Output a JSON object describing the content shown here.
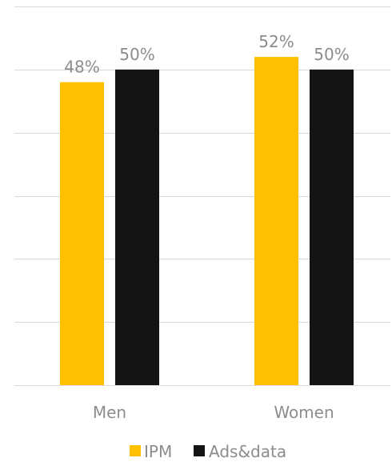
{
  "chart_data": {
    "type": "bar",
    "categories": [
      "Men",
      "Women"
    ],
    "series": [
      {
        "name": "IPM",
        "values": [
          48,
          52
        ],
        "labels": [
          "48%",
          "52%"
        ],
        "color": "#ffc000"
      },
      {
        "name": "Ads&data",
        "values": [
          50,
          50
        ],
        "labels": [
          "50%",
          "50%"
        ],
        "color": "#141414"
      }
    ],
    "ylim": [
      0,
      60
    ],
    "grid": true,
    "legend": "bottom"
  }
}
